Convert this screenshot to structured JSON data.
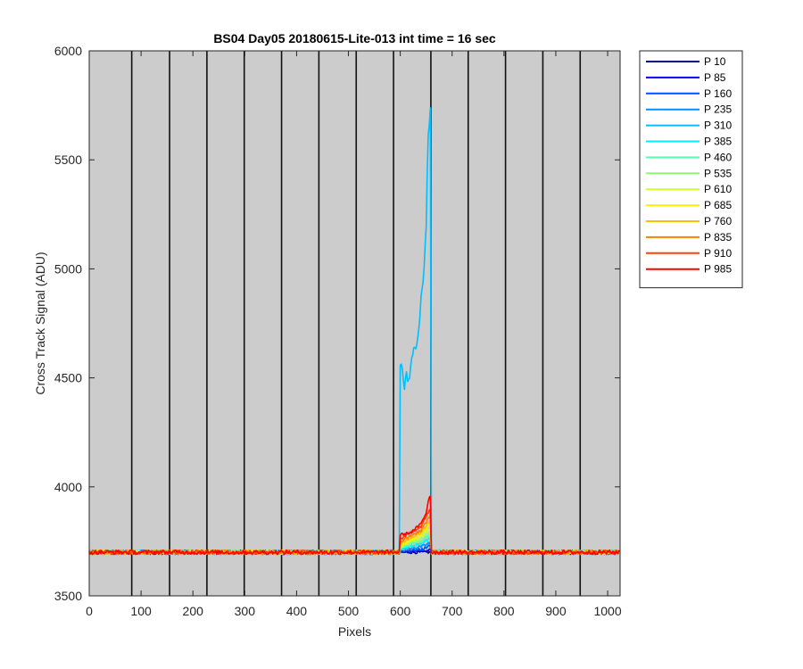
{
  "chart_data": {
    "type": "line",
    "title": "BS04 Day05 20180615-Lite-013 int time = 16 sec",
    "xlabel": "Pixels",
    "ylabel": "Cross Track Signal (ADU)",
    "xlim": [
      0,
      1024
    ],
    "ylim": [
      3500,
      6000
    ],
    "xticks": [
      0,
      100,
      200,
      300,
      400,
      500,
      600,
      700,
      800,
      900,
      1000
    ],
    "yticks": [
      3500,
      4000,
      4500,
      5000,
      5500,
      6000
    ],
    "background": "#cccccc",
    "grid": false,
    "divider_lines_x": [
      82,
      155,
      227,
      299,
      371,
      443,
      515,
      587,
      659,
      731,
      803,
      875,
      947
    ],
    "legend_position": "outside-right",
    "baseline": 3700,
    "noise_amplitude": 10,
    "series": [
      {
        "name": "P 10",
        "color": "#00008f",
        "step_start": 600,
        "step_end": 658,
        "profile": [
          [
            600,
            3700
          ],
          [
            658,
            3700
          ]
        ]
      },
      {
        "name": "P 85",
        "color": "#0000ef",
        "step_start": 600,
        "step_end": 658,
        "profile": [
          [
            600,
            3702
          ],
          [
            658,
            3710
          ]
        ]
      },
      {
        "name": "P 160",
        "color": "#0050ff",
        "step_start": 600,
        "step_end": 658,
        "profile": [
          [
            600,
            3705
          ],
          [
            640,
            3712
          ],
          [
            658,
            3730
          ]
        ]
      },
      {
        "name": "P 235",
        "color": "#0090ff",
        "step_start": 600,
        "step_end": 658,
        "profile": [
          [
            600,
            3710
          ],
          [
            640,
            3725
          ],
          [
            658,
            3745
          ]
        ]
      },
      {
        "name": "P 310",
        "color": "#00bfff",
        "step_start": 600,
        "step_end": 658,
        "profile": [
          [
            600,
            4550
          ],
          [
            603,
            4580
          ],
          [
            608,
            4450
          ],
          [
            612,
            4510
          ],
          [
            615,
            4470
          ],
          [
            620,
            4540
          ],
          [
            625,
            4620
          ],
          [
            630,
            4650
          ],
          [
            635,
            4700
          ],
          [
            640,
            4860
          ],
          [
            645,
            4950
          ],
          [
            650,
            5200
          ],
          [
            653,
            5550
          ],
          [
            655,
            5650
          ],
          [
            657,
            5700
          ],
          [
            658,
            5730
          ]
        ]
      },
      {
        "name": "P 385",
        "color": "#00efff",
        "step_start": 600,
        "step_end": 658,
        "profile": [
          [
            600,
            3715
          ],
          [
            640,
            3740
          ],
          [
            658,
            3765
          ]
        ]
      },
      {
        "name": "P 460",
        "color": "#50ffaf",
        "step_start": 600,
        "step_end": 658,
        "profile": [
          [
            600,
            3720
          ],
          [
            640,
            3750
          ],
          [
            658,
            3780
          ]
        ]
      },
      {
        "name": "P 535",
        "color": "#8fff70",
        "step_start": 600,
        "step_end": 658,
        "profile": [
          [
            600,
            3725
          ],
          [
            640,
            3760
          ],
          [
            658,
            3795
          ]
        ]
      },
      {
        "name": "P 610",
        "color": "#cfff30",
        "step_start": 600,
        "step_end": 658,
        "profile": [
          [
            600,
            3730
          ],
          [
            640,
            3770
          ],
          [
            658,
            3810
          ]
        ]
      },
      {
        "name": "P 685",
        "color": "#ffef00",
        "step_start": 600,
        "step_end": 658,
        "profile": [
          [
            600,
            3735
          ],
          [
            640,
            3780
          ],
          [
            658,
            3830
          ]
        ]
      },
      {
        "name": "P 760",
        "color": "#ffbf00",
        "step_start": 600,
        "step_end": 658,
        "profile": [
          [
            600,
            3740
          ],
          [
            640,
            3790
          ],
          [
            658,
            3850
          ]
        ]
      },
      {
        "name": "P 835",
        "color": "#ff7f00",
        "step_start": 600,
        "step_end": 658,
        "profile": [
          [
            600,
            3750
          ],
          [
            640,
            3800
          ],
          [
            658,
            3870
          ]
        ]
      },
      {
        "name": "P 910",
        "color": "#ff4000",
        "step_start": 600,
        "step_end": 658,
        "profile": [
          [
            600,
            3760
          ],
          [
            640,
            3820
          ],
          [
            658,
            3900
          ]
        ]
      },
      {
        "name": "P 985",
        "color": "#ff0000",
        "step_start": 600,
        "step_end": 658,
        "profile": [
          [
            600,
            3780
          ],
          [
            620,
            3790
          ],
          [
            640,
            3830
          ],
          [
            650,
            3880
          ],
          [
            655,
            3950
          ],
          [
            658,
            3960
          ]
        ]
      }
    ]
  }
}
